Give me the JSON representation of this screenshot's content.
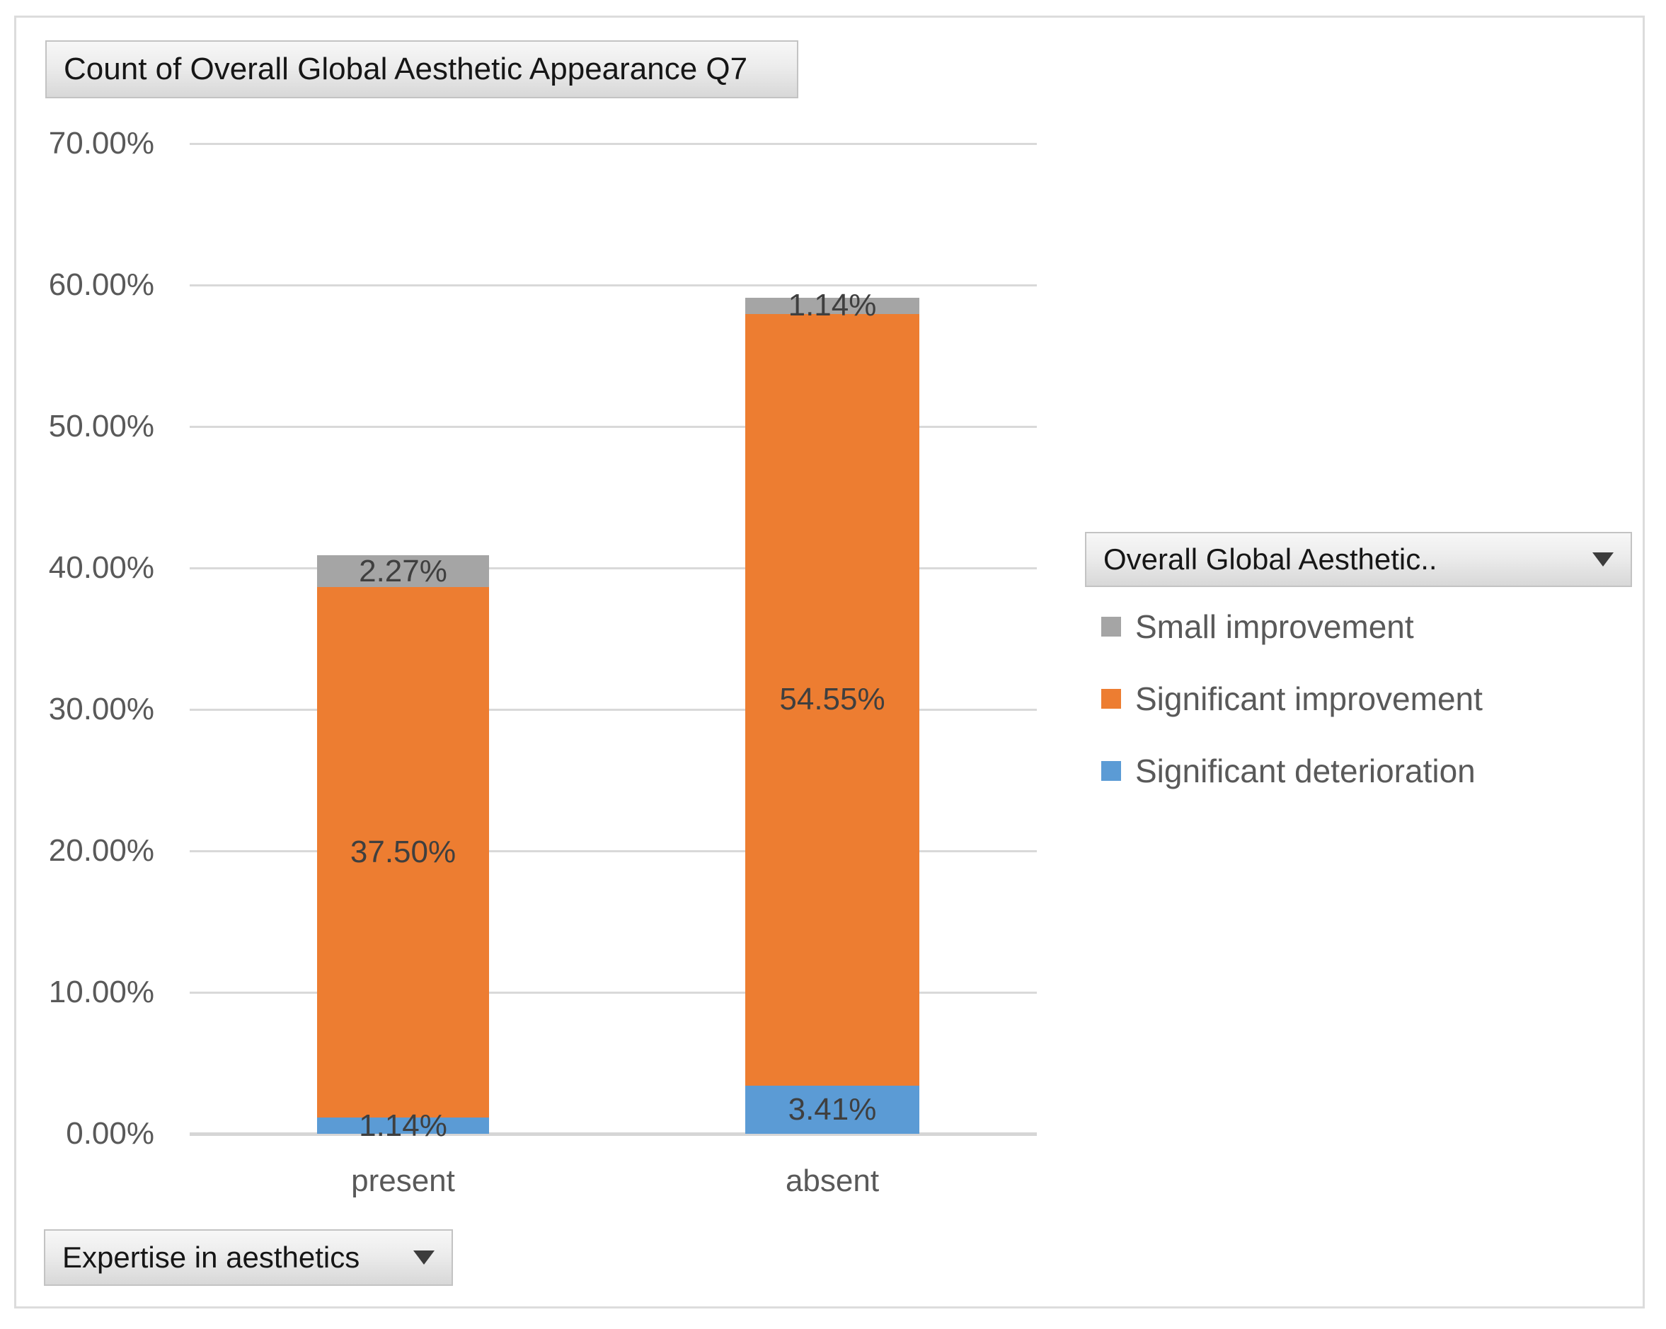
{
  "buttons": {
    "value_field": {
      "label": "Count of Overall Global Aesthetic Appearance Q7"
    },
    "axis_field": {
      "label": "Expertise in aesthetics"
    },
    "legend_field": {
      "label": "Overall Global Aesthetic.."
    }
  },
  "legend": {
    "items": [
      {
        "label": "Small improvement",
        "color": "#A5A5A5"
      },
      {
        "label": "Significant improvement",
        "color": "#ED7D31"
      },
      {
        "label": "Significant deterioration",
        "color": "#5B9BD5"
      }
    ]
  },
  "chart_data": {
    "type": "bar",
    "stacked": true,
    "title": "Count of Overall Global Aesthetic Appearance Q7",
    "categories": [
      "present",
      "absent"
    ],
    "series": [
      {
        "name": "Significant deterioration",
        "color": "#5B9BD5",
        "values": [
          1.14,
          3.41
        ],
        "labels": [
          "1.14%",
          "3.41%"
        ]
      },
      {
        "name": "Significant improvement",
        "color": "#ED7D31",
        "values": [
          37.5,
          54.55
        ],
        "labels": [
          "37.50%",
          "54.55%"
        ]
      },
      {
        "name": "Small improvement",
        "color": "#A5A5A5",
        "values": [
          2.27,
          1.14
        ],
        "labels": [
          "2.27%",
          "1.14%"
        ]
      }
    ],
    "xlabel": "",
    "ylabel": "",
    "ylim": [
      0,
      70
    ],
    "grid": true,
    "legend_position": "right",
    "yticks": [
      {
        "value": 70,
        "label": "70.00%"
      },
      {
        "value": 60,
        "label": "60.00%"
      },
      {
        "value": 50,
        "label": "50.00%"
      },
      {
        "value": 40,
        "label": "40.00%"
      },
      {
        "value": 30,
        "label": "30.00%"
      },
      {
        "value": 20,
        "label": "20.00%"
      },
      {
        "value": 10,
        "label": "10.00%"
      },
      {
        "value": 0,
        "label": "0.00%"
      }
    ]
  },
  "colors": {
    "gridline": "#D9D9D9",
    "axis_text": "#595959",
    "data_label": "#3F3F3F"
  }
}
